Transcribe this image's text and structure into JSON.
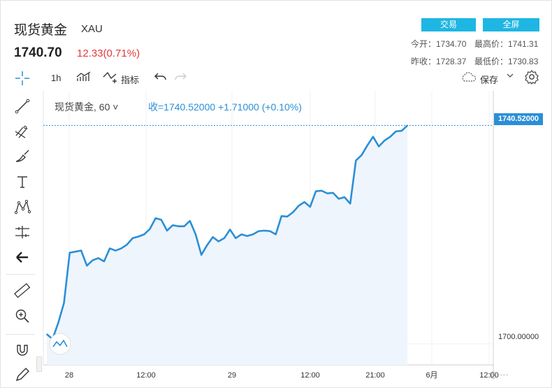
{
  "header": {
    "name": "现货黄金",
    "code": "XAU",
    "price": "1740.70",
    "change": "12.33(0.71%)",
    "trade_label": "交易",
    "fullscreen_label": "全屏"
  },
  "stats": {
    "open": "今开：1734.70",
    "high": "最高价：1741.31",
    "prev_close": "昨收：1728.37",
    "low": "最低价：1730.83"
  },
  "toolbar": {
    "interval": "1h",
    "indicators_label": "指标",
    "save_label": "保存"
  },
  "legend": {
    "name": "现货黄金, 60",
    "values": "收=1740.52000  +1.71000 (+0.10%)"
  },
  "axis": {
    "last_price": "1740.52000",
    "level_label": "1700.00000",
    "x_ticks": [
      "28",
      "12:00",
      "29",
      "12:00",
      "21:00",
      "6月",
      "12:00"
    ]
  },
  "colors": {
    "line": "#2b8fd6",
    "fill": "#eef5fc",
    "up": "#e03a3a",
    "button": "#1eb6e3"
  },
  "icons": {
    "tools": [
      "crosshair-icon",
      "trend-line-icon",
      "fib-icon",
      "brush-icon",
      "text-icon",
      "pattern-icon",
      "measure-icon",
      "back-arrow-icon",
      "ruler-icon",
      "zoom-icon",
      "magnet-icon",
      "lock-pencil-icon"
    ]
  },
  "chart_data": {
    "type": "area",
    "title": "",
    "ylim": [
      1696.1,
      1746.9
    ],
    "y_tick": 1700,
    "x": [
      0,
      1,
      2,
      3,
      4,
      5,
      6,
      7,
      8,
      9,
      10,
      11,
      12,
      13,
      14,
      15,
      16,
      17,
      18,
      19,
      20,
      21,
      22,
      23,
      24,
      25,
      26,
      27,
      28,
      29,
      30,
      31,
      32,
      33,
      34,
      35,
      36,
      37,
      38,
      39,
      40,
      41,
      42,
      43,
      44,
      45,
      46,
      47,
      48,
      49,
      50,
      51,
      52,
      53,
      54,
      55,
      56,
      57,
      58,
      59,
      60,
      61,
      62,
      63
    ],
    "values": [
      1701.8,
      1700.9,
      1703.9,
      1707.6,
      1716.9,
      1717.1,
      1717.3,
      1714.5,
      1715.5,
      1715.9,
      1715.3,
      1717.7,
      1717.3,
      1717.7,
      1718.4,
      1719.6,
      1719.9,
      1720.3,
      1721.3,
      1723.3,
      1723.0,
      1721.0,
      1722.0,
      1721.8,
      1721.8,
      1722.8,
      1720.3,
      1716.5,
      1718.3,
      1719.8,
      1719.0,
      1719.6,
      1721.2,
      1719.6,
      1720.3,
      1720.0,
      1720.3,
      1720.9,
      1721.0,
      1720.9,
      1720.3,
      1723.7,
      1723.6,
      1724.4,
      1725.6,
      1726.3,
      1725.4,
      1728.3,
      1728.4,
      1727.9,
      1728.0,
      1726.9,
      1727.2,
      1726.0,
      1734.0,
      1735.0,
      1736.8,
      1738.4,
      1736.6,
      1737.7,
      1738.4,
      1739.4,
      1739.5,
      1740.5
    ]
  }
}
